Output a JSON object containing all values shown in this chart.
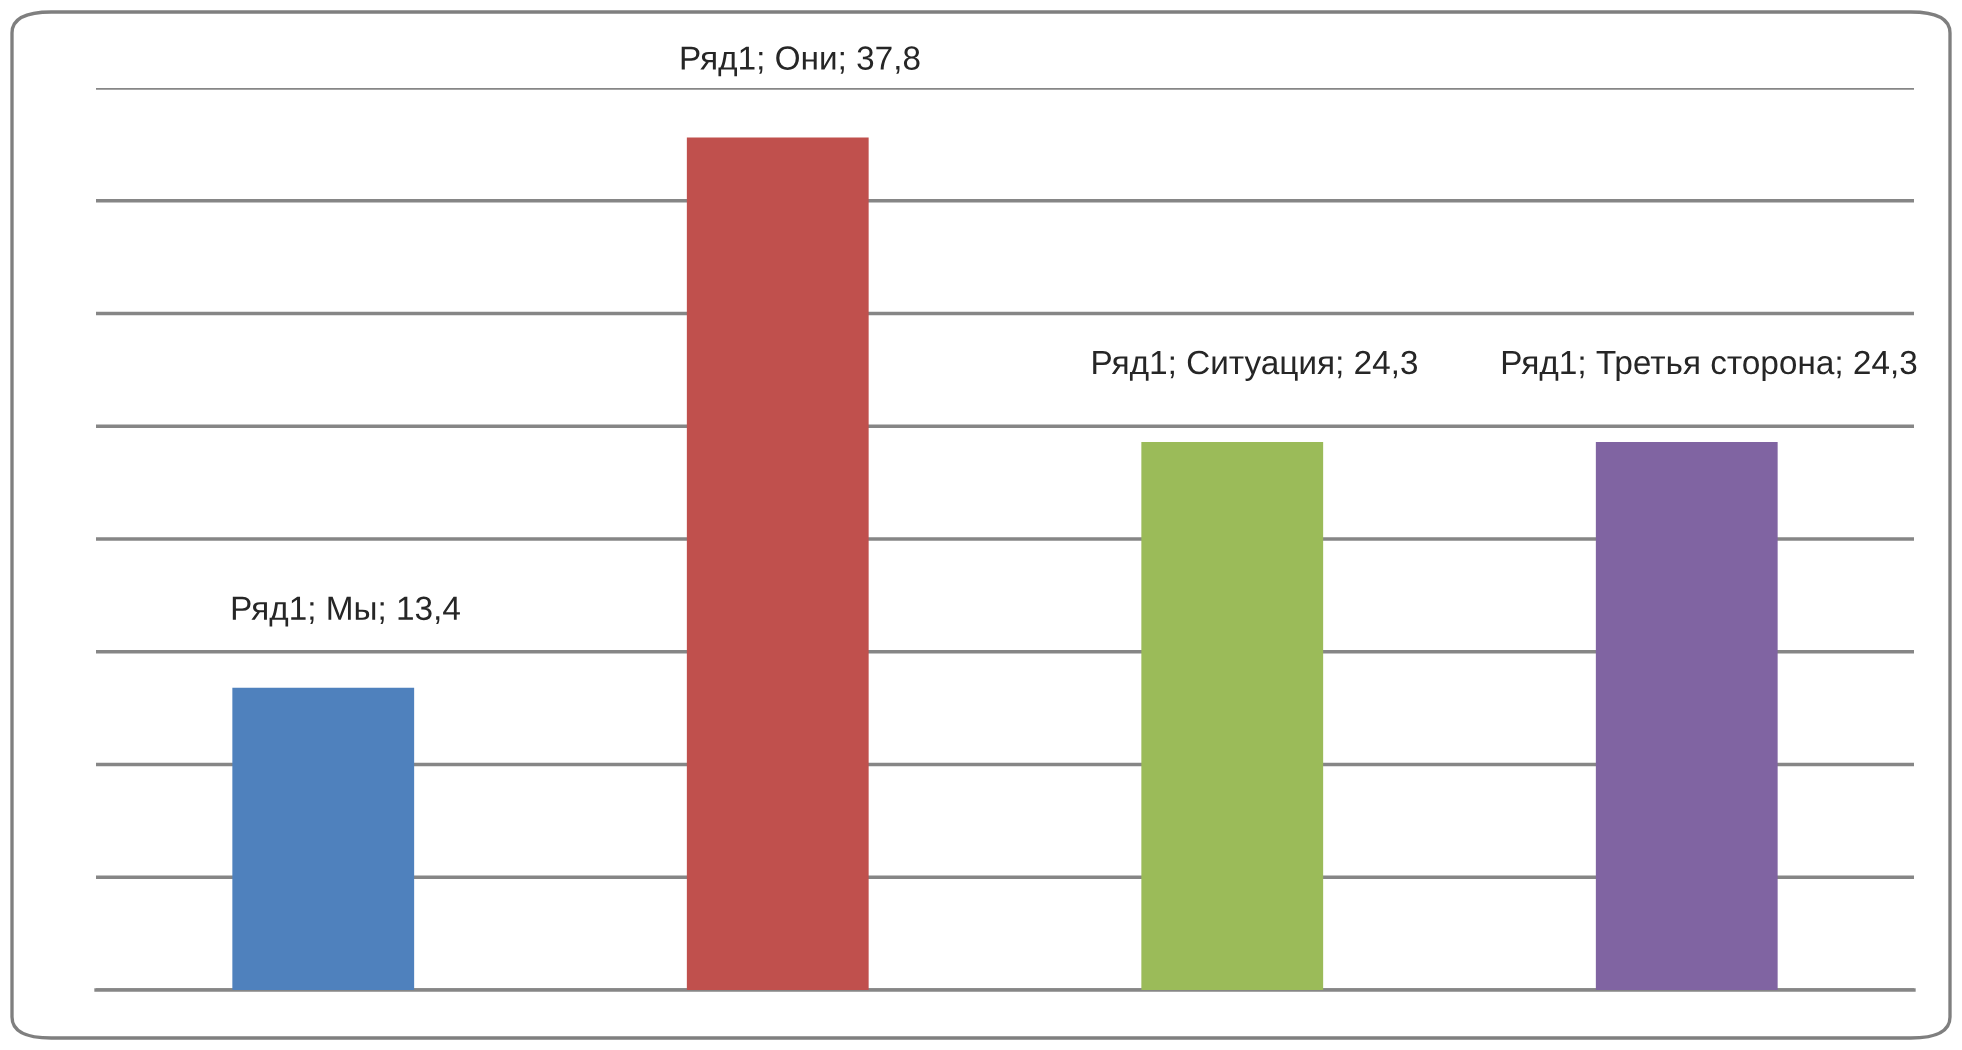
{
  "chart_data": {
    "type": "bar",
    "categories": [
      null,
      null,
      null,
      null
    ],
    "values": [
      13.4,
      37.8,
      24.3,
      24.3
    ],
    "colors": [
      "#4f81bd",
      "#c0504d",
      "#9bbb59",
      "#8064a2"
    ],
    "value_labels": [
      "Ряд1; Мы; 13,4",
      "Ряд1; Они; 37,8",
      "Ряд1; Ситуация; 24,3",
      "Ряд1; Третья сторона; 24,3"
    ],
    "ylim": [
      0,
      40
    ],
    "yticks": [
      {
        "value": 0,
        "label": null
      },
      {
        "value": 5,
        "label": null
      },
      {
        "value": 10,
        "label": null
      },
      {
        "value": 15,
        "label": null
      },
      {
        "value": 20,
        "label": null
      },
      {
        "value": 25,
        "label": null
      },
      {
        "value": 30,
        "label": null
      },
      {
        "value": 35,
        "label": null
      },
      {
        "value": 40,
        "label": null
      }
    ],
    "grid": "y"
  }
}
